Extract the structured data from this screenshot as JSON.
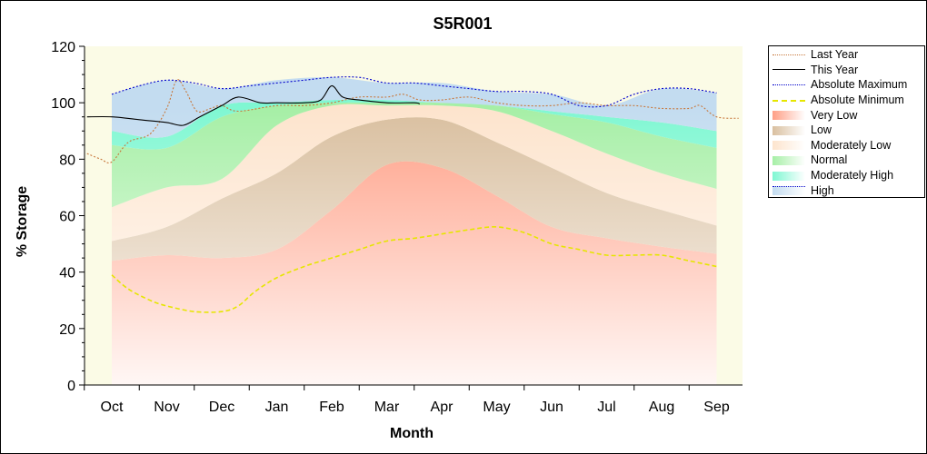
{
  "chart_data": {
    "type": "area",
    "title": "S5R001",
    "xlabel": "Month",
    "ylabel": "% Storage",
    "ylim": [
      0,
      120
    ],
    "yticks": [
      0,
      20,
      40,
      60,
      80,
      100,
      120
    ],
    "categories": [
      "Oct",
      "Nov",
      "Dec",
      "Jan",
      "Feb",
      "Mar",
      "Apr",
      "May",
      "Jun",
      "Jul",
      "Aug",
      "Sep"
    ],
    "grid": false,
    "legend_position": "right",
    "band_series": [
      {
        "name": "Very Low",
        "color": "#ff9f86",
        "lower": [
          0,
          0,
          0,
          0,
          0,
          0,
          0,
          0,
          0,
          0,
          0,
          0
        ],
        "upper": [
          44,
          46,
          45,
          48,
          62,
          78,
          77,
          67,
          56,
          52,
          49,
          46.5
        ]
      },
      {
        "name": "Low",
        "color": "#d9bf9f",
        "lower": [
          44,
          46,
          45,
          48,
          62,
          78,
          77,
          67,
          56,
          52,
          49,
          46.5
        ],
        "upper": [
          51,
          56,
          66,
          75,
          88,
          94,
          94,
          86,
          77,
          68,
          62,
          56.5
        ]
      },
      {
        "name": "Moderately Low",
        "color": "#fde4cd",
        "lower": [
          51,
          56,
          66,
          75,
          88,
          94,
          94,
          86,
          77,
          68,
          62,
          56.5
        ],
        "upper": [
          63,
          70,
          73,
          92,
          99,
          99,
          99,
          97,
          90,
          82,
          75,
          69.5
        ]
      },
      {
        "name": "Normal",
        "color": "#a6efa6",
        "lower": [
          63,
          70,
          73,
          92,
          99,
          99,
          99,
          97,
          90,
          82,
          75,
          69.5
        ],
        "upper": [
          85,
          84,
          95,
          99,
          100,
          100,
          100,
          99,
          96,
          93,
          88,
          84
        ]
      },
      {
        "name": "Moderately High",
        "color": "#7ff7d2",
        "lower": [
          85,
          84,
          95,
          99,
          100,
          100,
          100,
          99,
          96,
          93,
          88,
          84
        ],
        "upper": [
          90,
          88,
          99,
          100,
          101,
          101,
          100,
          99,
          97,
          95,
          93,
          90
        ]
      },
      {
        "name": "High",
        "color": "#c3dcf0",
        "lower": [
          90,
          88,
          99,
          100,
          101,
          101,
          100,
          99,
          97,
          95,
          93,
          90
        ],
        "upper": [
          103,
          108,
          105,
          108,
          109,
          107,
          107,
          104,
          103,
          99,
          105,
          103.5
        ]
      }
    ],
    "line_series": [
      {
        "name": "Last Year",
        "color": "#c8783c",
        "style": "dotted",
        "x": [
          -0.45,
          -0.2,
          0,
          0.3,
          0.7,
          1,
          1.18,
          1.35,
          1.55,
          1.8,
          2,
          2.3,
          3,
          3.5,
          4,
          4.5,
          5,
          5.3,
          5.6,
          6,
          6.5,
          7,
          7.5,
          8,
          8.5,
          9,
          9.5,
          10,
          10.5,
          10.7,
          11,
          11.4
        ],
        "y": [
          82,
          80,
          79,
          86,
          89,
          98,
          108,
          104,
          97,
          98,
          99,
          97,
          99,
          99,
          100,
          102,
          102,
          103,
          101,
          101,
          102,
          100,
          99,
          99,
          100,
          99,
          99,
          98,
          98,
          99,
          95,
          94.5
        ]
      },
      {
        "name": "This Year",
        "color": "#000000",
        "style": "solid",
        "x": [
          -0.45,
          0,
          0.5,
          1,
          1.3,
          1.6,
          2,
          2.3,
          2.7,
          3,
          3.5,
          3.8,
          4,
          4.2,
          4.5,
          5,
          5.5,
          5.6
        ],
        "y": [
          95,
          95,
          94,
          93,
          92,
          95,
          99,
          102,
          100,
          100,
          100,
          101,
          106,
          102,
          101,
          100,
          100,
          99.6
        ]
      },
      {
        "name": "Absolute Maximum",
        "color": "#0000cc",
        "style": "dotted",
        "x": [
          0,
          0.5,
          1,
          1.5,
          2,
          2.5,
          3,
          3.5,
          4,
          4.5,
          5,
          5.5,
          6,
          6.5,
          7,
          7.5,
          8,
          8.5,
          9,
          9.5,
          10,
          10.5,
          11
        ],
        "y": [
          103,
          106,
          108,
          107,
          105,
          106,
          107,
          108,
          109,
          109,
          107,
          107,
          106,
          105,
          104,
          104,
          103,
          99,
          99,
          103,
          105,
          105,
          103.5
        ]
      },
      {
        "name": "Absolute Minimum",
        "color": "#e6e600",
        "style": "dashed",
        "x": [
          0,
          0.3,
          0.7,
          1,
          1.5,
          2,
          2.3,
          2.6,
          3,
          3.5,
          4,
          4.5,
          5,
          5.5,
          6,
          6.5,
          7,
          7.5,
          8,
          8.5,
          9,
          9.5,
          10,
          10.5,
          11
        ],
        "y": [
          39,
          34,
          30,
          28,
          26,
          26,
          28,
          33,
          38,
          42,
          45,
          48,
          51,
          52,
          53.5,
          55,
          56,
          54,
          50,
          48,
          46,
          46,
          46,
          44,
          42
        ]
      }
    ],
    "legend": [
      "Last Year",
      "This Year",
      "Absolute Maximum",
      "Absolute Minimum",
      "Very Low",
      "Low",
      "Moderately Low",
      "Normal",
      "Moderately High",
      "High"
    ]
  }
}
